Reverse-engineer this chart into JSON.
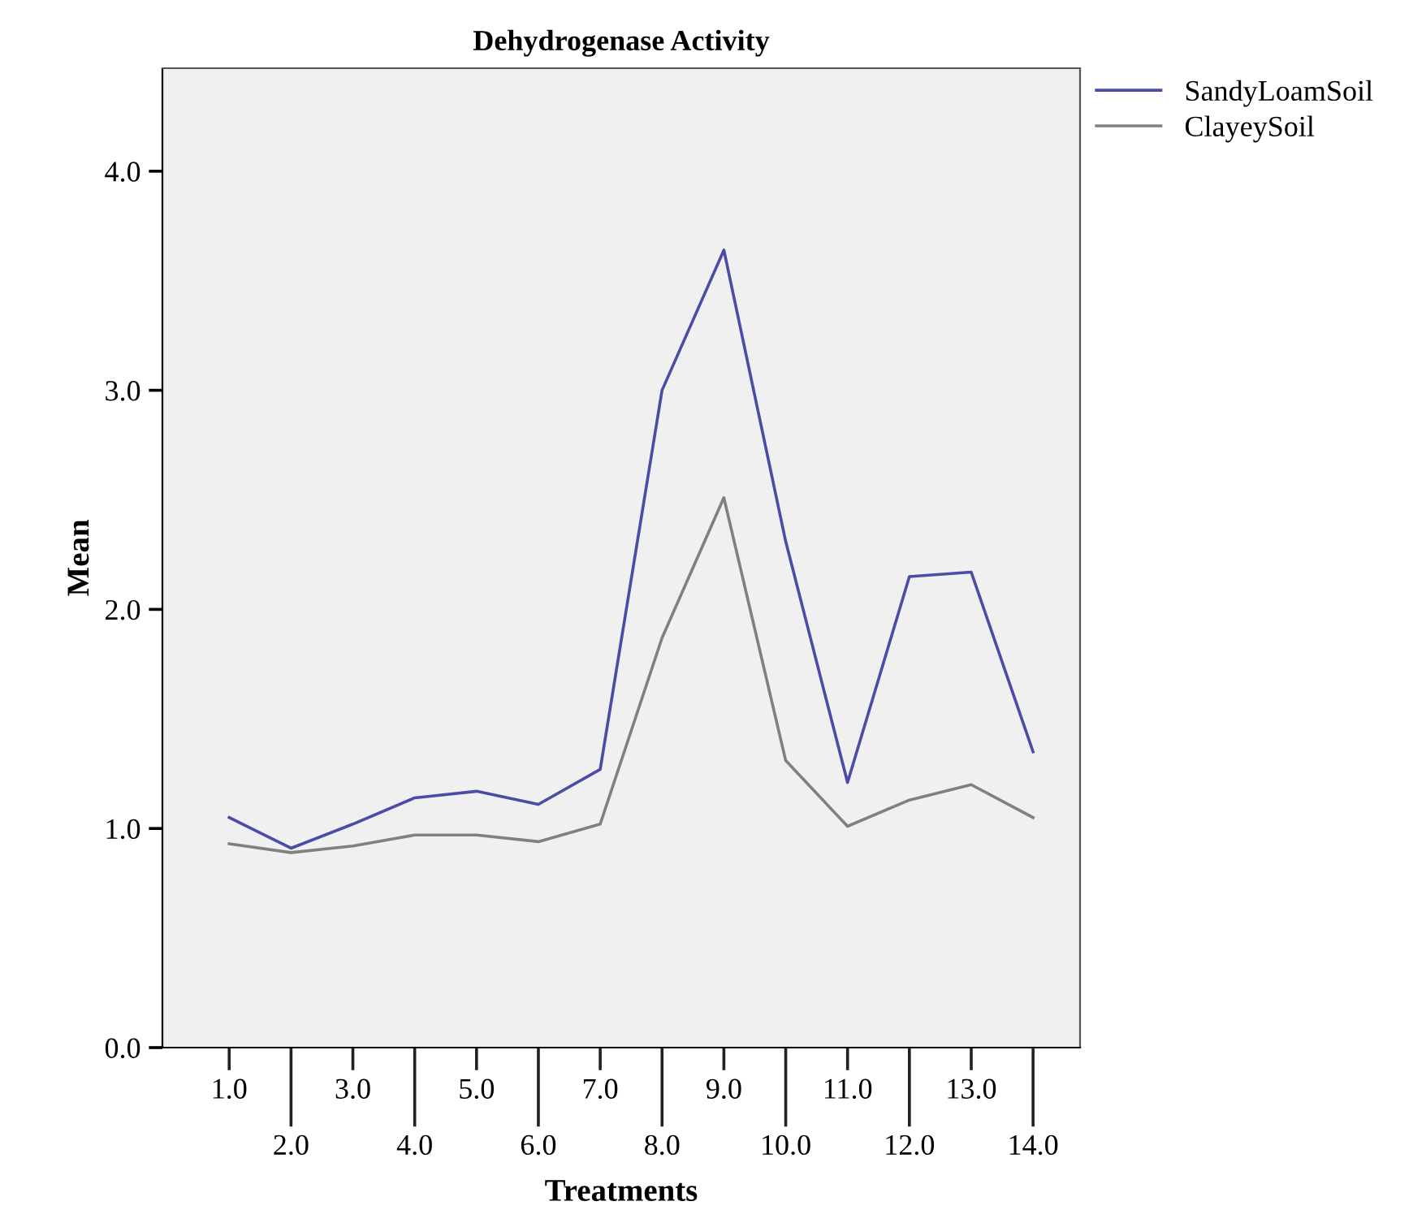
{
  "chart_data": {
    "type": "line",
    "title": "Dehydrogenase Activity",
    "xlabel": "Treatments",
    "ylabel": "Mean",
    "categories": [
      "1.0",
      "2.0",
      "3.0",
      "4.0",
      "5.0",
      "6.0",
      "7.0",
      "8.0",
      "9.0",
      "10.0",
      "11.0",
      "12.0",
      "13.0",
      "14.0"
    ],
    "series": [
      {
        "name": "SandyLoamSoil",
        "color": "#4b4ba8",
        "values": [
          1.05,
          0.91,
          1.02,
          1.14,
          1.17,
          1.11,
          1.27,
          3.0,
          3.64,
          2.31,
          1.21,
          2.15,
          2.17,
          1.35
        ]
      },
      {
        "name": "ClayeySoil",
        "color": "#808080",
        "values": [
          0.93,
          0.89,
          0.92,
          0.97,
          0.97,
          0.94,
          1.02,
          1.87,
          2.51,
          1.31,
          1.01,
          1.13,
          1.2,
          1.05
        ]
      }
    ],
    "ylim": [
      0,
      4.47
    ],
    "yticks": [
      {
        "value": 0,
        "label": "0.0"
      },
      {
        "value": 1,
        "label": "1.0"
      },
      {
        "value": 2,
        "label": "2.0"
      },
      {
        "value": 3,
        "label": "3.0"
      },
      {
        "value": 4,
        "label": "4.0"
      }
    ],
    "grid": false,
    "legend": "top right",
    "marker": "none",
    "line_style": "solid"
  }
}
